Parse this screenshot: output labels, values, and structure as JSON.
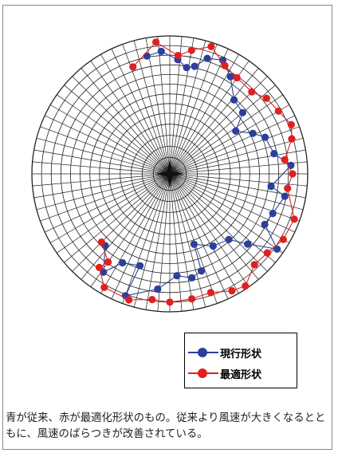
{
  "chart_data": {
    "type": "polar-scatter",
    "grid": true,
    "rings": 14,
    "spokes": 72,
    "legend_position": "bottom-right",
    "series": [
      {
        "name": "現行形状",
        "color": "#2b3f9b",
        "points": [
          [
            0.87,
            -11
          ],
          [
            0.89,
            -4
          ],
          [
            0.83,
            4
          ],
          [
            0.78,
            9
          ],
          [
            0.8,
            13
          ],
          [
            0.88,
            18
          ],
          [
            0.91,
            25
          ],
          [
            0.83,
            32
          ],
          [
            0.71,
            41
          ],
          [
            0.69,
            50
          ],
          [
            0.57,
            57
          ],
          [
            0.67,
            64
          ],
          [
            0.74,
            69
          ],
          [
            0.77,
            79
          ],
          [
            0.88,
            86
          ],
          [
            0.74,
            97
          ],
          [
            0.85,
            101
          ],
          [
            0.8,
            111
          ],
          [
            0.78,
            118
          ],
          [
            0.95,
            125
          ],
          [
            0.76,
            132
          ],
          [
            0.64,
            138
          ],
          [
            0.61,
            149
          ],
          [
            0.54,
            161
          ],
          [
            0.74,
            162
          ],
          [
            0.77,
            168
          ],
          [
            0.74,
            176
          ],
          [
            0.84,
            186
          ],
          [
            0.94,
            200
          ],
          [
            0.7,
            198
          ],
          [
            0.73,
            208
          ],
          [
            0.86,
            214
          ],
          [
            0.7,
            222
          ]
        ]
      },
      {
        "name": "最適形状",
        "color": "#e02020",
        "points": [
          [
            0.82,
            -19
          ],
          [
            0.96,
            -6
          ],
          [
            0.86,
            4
          ],
          [
            0.91,
            10
          ],
          [
            0.97,
            18
          ],
          [
            0.88,
            27
          ],
          [
            0.85,
            35
          ],
          [
            0.84,
            45
          ],
          [
            0.89,
            52
          ],
          [
            0.91,
            60
          ],
          [
            0.95,
            68
          ],
          [
            0.92,
            74
          ],
          [
            0.84,
            83
          ],
          [
            0.89,
            90
          ],
          [
            0.86,
            97
          ],
          [
            0.96,
            110
          ],
          [
            0.95,
            120
          ],
          [
            0.91,
            129
          ],
          [
            0.9,
            137
          ],
          [
            0.98,
            146
          ],
          [
            0.96,
            152
          ],
          [
            0.91,
            161
          ],
          [
            0.92,
            170
          ],
          [
            0.93,
            180
          ],
          [
            0.92,
            188
          ],
          [
            0.96,
            198
          ],
          [
            0.95,
            210
          ],
          [
            0.85,
            217
          ],
          [
            0.78,
            215
          ],
          [
            0.7,
            225
          ]
        ]
      }
    ]
  },
  "caption": "青が従来、赤が最適化形状のもの。従来より風速が大きくなるとともに、風速のばらつきが改善されている。"
}
